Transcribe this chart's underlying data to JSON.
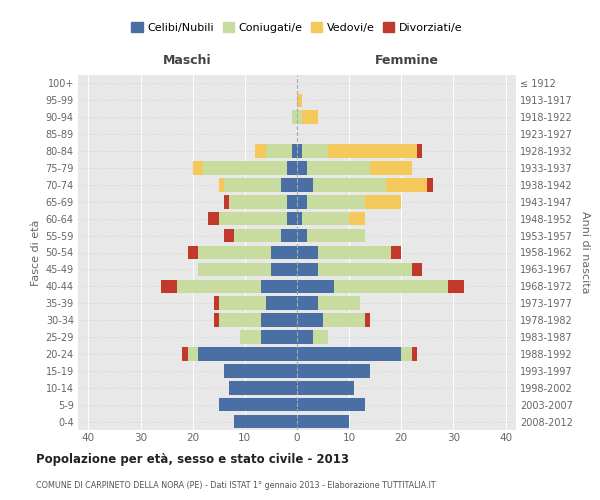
{
  "age_groups": [
    "0-4",
    "5-9",
    "10-14",
    "15-19",
    "20-24",
    "25-29",
    "30-34",
    "35-39",
    "40-44",
    "45-49",
    "50-54",
    "55-59",
    "60-64",
    "65-69",
    "70-74",
    "75-79",
    "80-84",
    "85-89",
    "90-94",
    "95-99",
    "100+"
  ],
  "birth_years": [
    "2008-2012",
    "2003-2007",
    "1998-2002",
    "1993-1997",
    "1988-1992",
    "1983-1987",
    "1978-1982",
    "1973-1977",
    "1968-1972",
    "1963-1967",
    "1958-1962",
    "1953-1957",
    "1948-1952",
    "1943-1947",
    "1938-1942",
    "1933-1937",
    "1928-1932",
    "1923-1927",
    "1918-1922",
    "1913-1917",
    "≤ 1912"
  ],
  "maschi": {
    "celibi": [
      12,
      15,
      13,
      14,
      19,
      7,
      7,
      6,
      7,
      5,
      5,
      3,
      2,
      2,
      3,
      2,
      1,
      0,
      0,
      0,
      0
    ],
    "coniugati": [
      0,
      0,
      0,
      0,
      2,
      4,
      8,
      9,
      16,
      14,
      14,
      9,
      13,
      11,
      11,
      16,
      5,
      0,
      1,
      0,
      0
    ],
    "vedovi": [
      0,
      0,
      0,
      0,
      0,
      0,
      0,
      0,
      0,
      0,
      0,
      0,
      0,
      0,
      1,
      2,
      2,
      0,
      0,
      0,
      0
    ],
    "divorziati": [
      0,
      0,
      0,
      0,
      1,
      0,
      1,
      1,
      3,
      0,
      2,
      2,
      2,
      1,
      0,
      0,
      0,
      0,
      0,
      0,
      0
    ]
  },
  "femmine": {
    "nubili": [
      10,
      13,
      11,
      14,
      20,
      3,
      5,
      4,
      7,
      4,
      4,
      2,
      1,
      2,
      3,
      2,
      1,
      0,
      0,
      0,
      0
    ],
    "coniugate": [
      0,
      0,
      0,
      0,
      2,
      3,
      8,
      8,
      22,
      18,
      14,
      11,
      9,
      11,
      14,
      12,
      5,
      0,
      1,
      0,
      0
    ],
    "vedove": [
      0,
      0,
      0,
      0,
      0,
      0,
      0,
      0,
      0,
      0,
      0,
      0,
      3,
      7,
      8,
      8,
      17,
      0,
      3,
      1,
      0
    ],
    "divorziate": [
      0,
      0,
      0,
      0,
      1,
      0,
      1,
      0,
      3,
      2,
      2,
      0,
      0,
      0,
      1,
      0,
      1,
      0,
      0,
      0,
      0
    ]
  },
  "colors": {
    "celibi": "#4a6fa5",
    "coniugati": "#c8dca0",
    "vedovi": "#f5c85c",
    "divorziati": "#c0392b"
  },
  "xlim": 42,
  "title": "Popolazione per età, sesso e stato civile - 2013",
  "subtitle": "COMUNE DI CARPINETO DELLA NORA (PE) - Dati ISTAT 1° gennaio 2013 - Elaborazione TUTTITALIA.IT",
  "xlabel_left": "Maschi",
  "xlabel_right": "Femmine",
  "ylabel": "Fasce di età",
  "ylabel_right": "Anni di nascita",
  "bg_color": "#ffffff",
  "plot_bg": "#e8e8e8"
}
